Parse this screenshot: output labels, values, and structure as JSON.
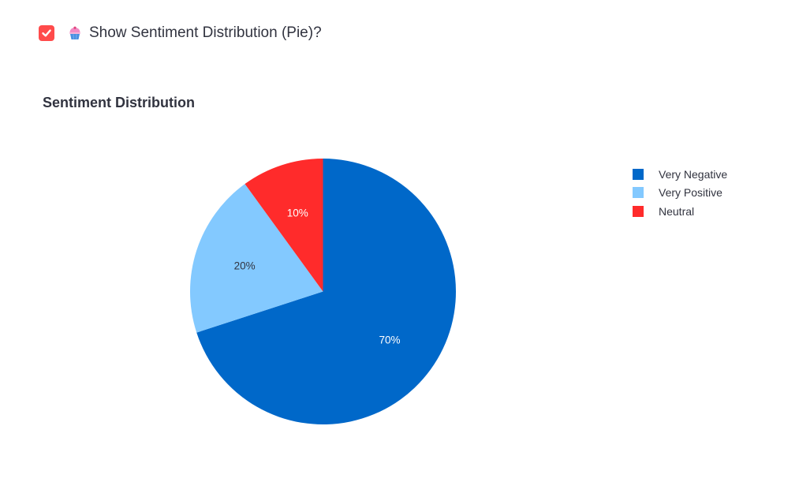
{
  "checkbox": {
    "checked": true,
    "label": "Show Sentiment Distribution (Pie)?",
    "icon": "cupcake-icon",
    "color": "#ff4b4b"
  },
  "chart_data": {
    "type": "pie",
    "title": "Sentiment Distribution",
    "categories": [
      "Very Negative",
      "Very Positive",
      "Neutral"
    ],
    "values": [
      70,
      20,
      10
    ],
    "labels": [
      "70%",
      "20%",
      "10%"
    ],
    "colors": [
      "#0068c9",
      "#83c9ff",
      "#ff2b2b"
    ],
    "label_colors": [
      "#ffffff",
      "#31333f",
      "#ffffff"
    ],
    "legend_position": "right"
  }
}
